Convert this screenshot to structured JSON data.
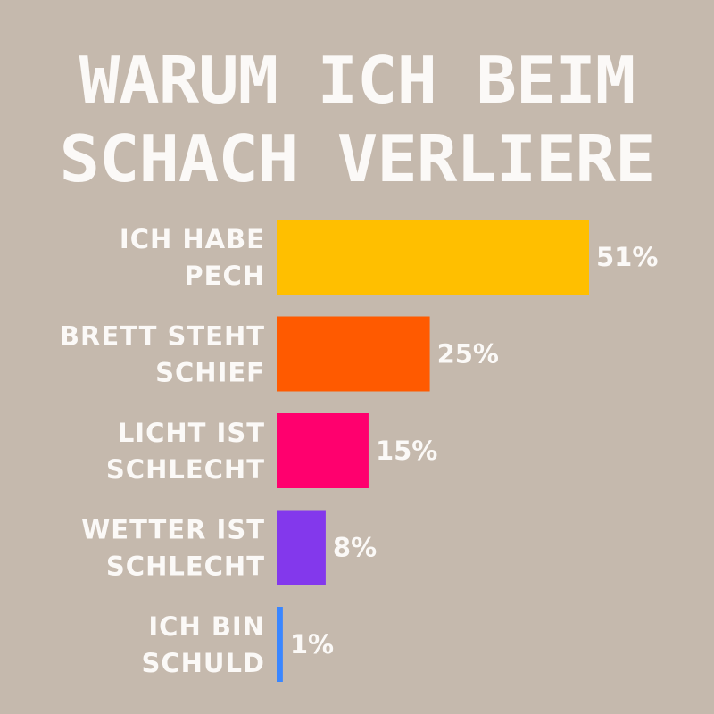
{
  "title_lines": [
    "WARUM ICH BEIM",
    "SCHACH VERLIERE"
  ],
  "chart_data": {
    "type": "bar",
    "orientation": "horizontal",
    "title": "WARUM ICH BEIM SCHACH VERLIERE",
    "categories": [
      [
        "ICH HABE",
        "PECH"
      ],
      [
        "BRETT STEHT",
        "SCHIEF"
      ],
      [
        "LICHT IST",
        "SCHLECHT"
      ],
      [
        "WETTER IST",
        "SCHLECHT"
      ],
      [
        "ICH BIN",
        "SCHULD"
      ]
    ],
    "values": [
      51,
      25,
      15,
      8,
      1
    ],
    "value_labels": [
      "51%",
      "25%",
      "15%",
      "8%",
      "1%"
    ],
    "colors": [
      "#ffbf00",
      "#ff5a00",
      "#ff006e",
      "#8338ec",
      "#3a86ff"
    ],
    "xlim": [
      0,
      51
    ],
    "grid": false,
    "legend": "none"
  }
}
